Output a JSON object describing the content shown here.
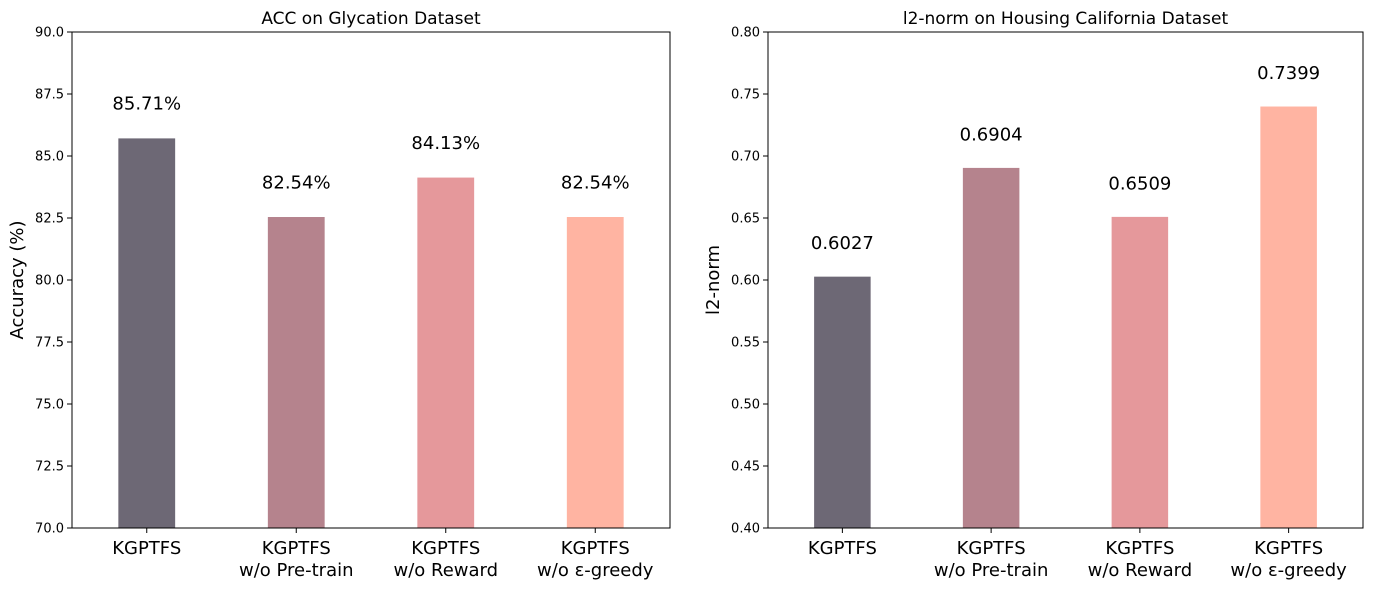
{
  "chart_data": [
    {
      "type": "bar",
      "title": "ACC on Glycation Dataset",
      "xlabel": "",
      "ylabel": "Accuracy (%)",
      "categories": [
        [
          "KGPTFS"
        ],
        [
          "KGPTFS",
          "w/o Pre-train"
        ],
        [
          "KGPTFS",
          "w/o Reward"
        ],
        [
          "KGPTFS",
          "w/o ε-greedy"
        ]
      ],
      "values": [
        85.71,
        82.54,
        84.13,
        82.54
      ],
      "labels": [
        "85.71%",
        "82.54%",
        "84.13%",
        "82.54%"
      ],
      "colors": [
        "#6d6875",
        "#b5838d",
        "#e5989b",
        "#ffb4a2"
      ],
      "ylim": [
        70.0,
        90.0
      ],
      "yticks": [
        70.0,
        72.5,
        75.0,
        77.5,
        80.0,
        82.5,
        85.0,
        87.5,
        90.0
      ],
      "ytick_labels": [
        "70.0",
        "72.5",
        "75.0",
        "77.5",
        "80.0",
        "82.5",
        "85.0",
        "87.5",
        "90.0"
      ],
      "label_offset": 1.4,
      "grid": false
    },
    {
      "type": "bar",
      "title": "l2-norm on Housing California Dataset",
      "xlabel": "",
      "ylabel": "l2-norm",
      "categories": [
        [
          "KGPTFS"
        ],
        [
          "KGPTFS",
          "w/o Pre-train"
        ],
        [
          "KGPTFS",
          "w/o Reward"
        ],
        [
          "KGPTFS",
          "w/o ε-greedy"
        ]
      ],
      "values": [
        0.6027,
        0.6904,
        0.6509,
        0.7399
      ],
      "labels": [
        "0.6027",
        "0.6904",
        "0.6509",
        "0.7399"
      ],
      "colors": [
        "#6d6875",
        "#b5838d",
        "#e5989b",
        "#ffb4a2"
      ],
      "ylim": [
        0.4,
        0.8
      ],
      "yticks": [
        0.4,
        0.45,
        0.5,
        0.55,
        0.6,
        0.65,
        0.7,
        0.75,
        0.8
      ],
      "ytick_labels": [
        "0.40",
        "0.45",
        "0.50",
        "0.55",
        "0.60",
        "0.65",
        "0.70",
        "0.75",
        "0.80"
      ],
      "label_offset": 0.027,
      "grid": false
    }
  ]
}
